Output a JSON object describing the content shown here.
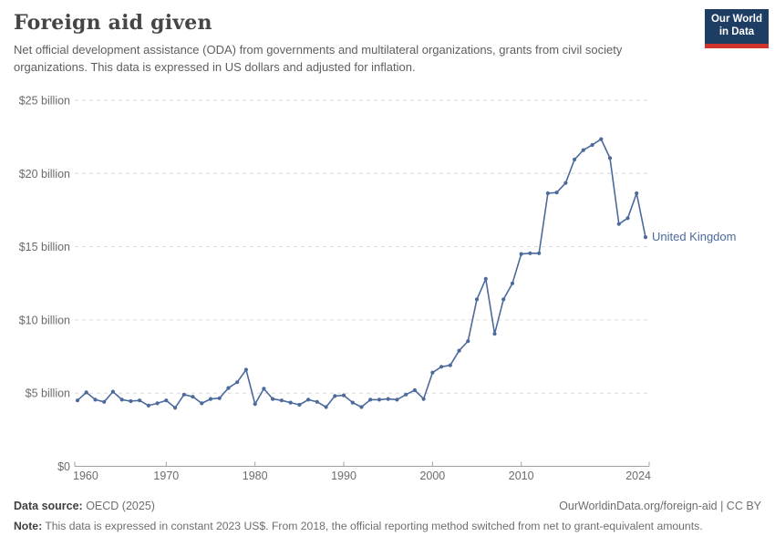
{
  "header": {
    "title": "Foreign aid given",
    "subtitle": "Net official development assistance (ODA) from governments and multilateral organizations, grants from civil society organizations. This data is expressed in US dollars and adjusted for inflation.",
    "logo": {
      "line1": "Our World",
      "line2": "in Data",
      "bg_color": "#1d3d63",
      "accent_color": "#d0342c"
    }
  },
  "chart_data": {
    "type": "line",
    "title": "Foreign aid given",
    "xlabel": "",
    "ylabel": "",
    "grid": "horizontal-dashed",
    "legend_position": "end-of-line-label",
    "ylim": [
      0,
      25
    ],
    "xlim": [
      1960,
      2024
    ],
    "x_ticks": [
      1960,
      1970,
      1980,
      1990,
      2000,
      2010,
      2024
    ],
    "y_ticks": [
      0,
      5,
      10,
      15,
      20,
      25
    ],
    "y_tick_label_format": "$N billion",
    "y_tick_labels": [
      "$0",
      "$5 billion",
      "$10 billion",
      "$15 billion",
      "$20 billion",
      "$25 billion"
    ],
    "unit": "billion US$ (constant 2023 US$)",
    "series": [
      {
        "name": "United Kingdom",
        "color": "#4c6a9c",
        "x": [
          1960,
          1961,
          1962,
          1963,
          1964,
          1965,
          1966,
          1967,
          1968,
          1969,
          1970,
          1971,
          1972,
          1973,
          1974,
          1975,
          1976,
          1977,
          1978,
          1979,
          1980,
          1981,
          1982,
          1983,
          1984,
          1985,
          1986,
          1987,
          1988,
          1989,
          1990,
          1991,
          1992,
          1993,
          1994,
          1995,
          1996,
          1997,
          1998,
          1999,
          2000,
          2001,
          2002,
          2003,
          2004,
          2005,
          2006,
          2007,
          2008,
          2009,
          2010,
          2011,
          2012,
          2013,
          2014,
          2015,
          2016,
          2017,
          2018,
          2019,
          2020,
          2021,
          2022,
          2023,
          2024
        ],
        "values": [
          4.5,
          5.05,
          4.55,
          4.4,
          5.1,
          4.55,
          4.45,
          4.5,
          4.15,
          4.3,
          4.5,
          4.0,
          4.9,
          4.75,
          4.3,
          4.6,
          4.65,
          5.35,
          5.75,
          6.6,
          4.25,
          5.3,
          4.6,
          4.5,
          4.35,
          4.2,
          4.55,
          4.4,
          4.05,
          4.8,
          4.85,
          4.35,
          4.05,
          4.55,
          4.55,
          4.6,
          4.55,
          4.9,
          5.2,
          4.6,
          6.4,
          6.8,
          6.9,
          7.9,
          8.55,
          11.4,
          12.8,
          9.05,
          11.4,
          12.5,
          14.5,
          14.55,
          14.55,
          18.65,
          18.7,
          19.35,
          20.95,
          21.6,
          21.95,
          22.35,
          21.05,
          16.55,
          16.95,
          18.65,
          15.65
        ]
      }
    ],
    "colors": {
      "line": "#4c6a9c",
      "gridline": "#dadada",
      "axis": "#a1a1a1",
      "tick_label": "#6b6b6b",
      "series_label": "#4c6a9c"
    }
  },
  "footer": {
    "source_label": "Data source:",
    "source_value": " OECD (2025)",
    "link_text": "OurWorldinData.org/foreign-aid | CC BY",
    "note_label": "Note:",
    "note_value": " This data is expressed in constant 2023 US$. From 2018, the official reporting method switched from net to grant-equivalent amounts."
  }
}
